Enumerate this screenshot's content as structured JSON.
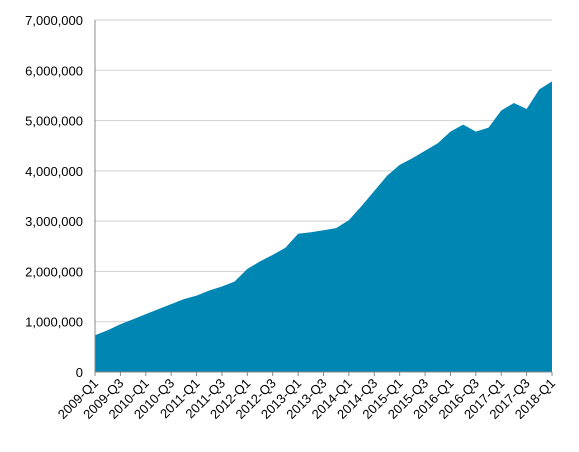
{
  "chart_data": {
    "type": "area",
    "categories": [
      "2009-Q1",
      null,
      "2009-Q3",
      null,
      "2010-Q1",
      null,
      "2010-Q3",
      null,
      "2011-Q1",
      null,
      "2011-Q3",
      null,
      "2012-Q1",
      null,
      "2012-Q3",
      null,
      "2013-Q1",
      null,
      "2013-Q3",
      null,
      "2014-Q1",
      null,
      "2014-Q3",
      null,
      "2015-Q1",
      null,
      "2015-Q3",
      null,
      "2016-Q1",
      null,
      "2016-Q3",
      null,
      "2017-Q1",
      null,
      "2017-Q3",
      null,
      "2018-Q1"
    ],
    "values": [
      730000,
      830000,
      950000,
      1050000,
      1150000,
      1250000,
      1350000,
      1450000,
      1520000,
      1620000,
      1700000,
      1800000,
      2050000,
      2200000,
      2330000,
      2470000,
      2750000,
      2780000,
      2820000,
      2860000,
      3020000,
      3300000,
      3600000,
      3900000,
      4120000,
      4250000,
      4400000,
      4550000,
      4780000,
      4920000,
      4780000,
      4860000,
      5200000,
      5350000,
      5230000,
      5620000,
      5780000
    ],
    "color": "#0086b3",
    "ylim": [
      0,
      7000000
    ],
    "yticks": [
      0,
      {
        "value": 1000000,
        "label": "1,000,000"
      },
      {
        "value": 2000000,
        "label": "2,000,000"
      },
      {
        "value": 3000000,
        "label": "3,000,000"
      },
      {
        "value": 4000000,
        "label": "4,000,000"
      },
      {
        "value": 5000000,
        "label": "5,000,000"
      },
      {
        "value": 6000000,
        "label": "6,000,000"
      },
      {
        "value": 7000000,
        "label": "7,000,000"
      }
    ],
    "grid": true
  }
}
